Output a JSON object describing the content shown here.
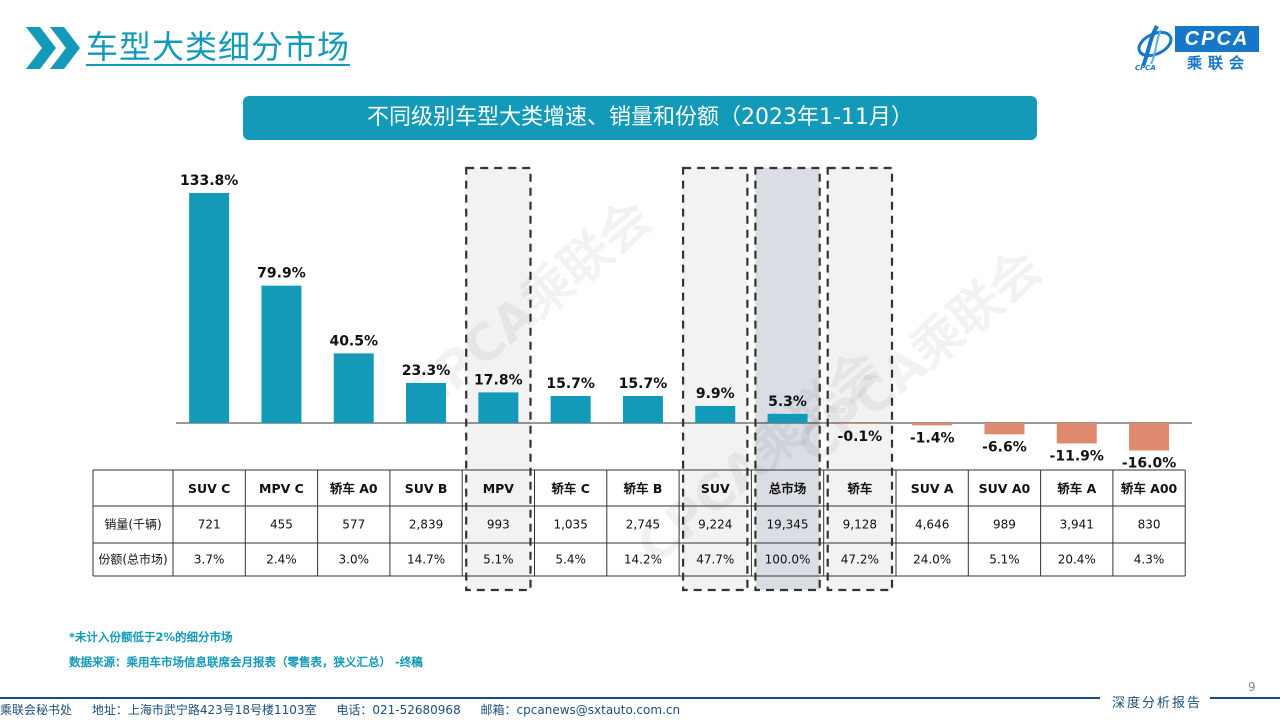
{
  "header": {
    "page_title": "车型大类细分市场",
    "logo_text": "CPCA",
    "logo_cn": "乘联会",
    "logo_sub": "CPCA"
  },
  "chart_title": "不同级别车型大类增速、销量和份额（2023年1-11月）",
  "watermarks": [
    "CPCA乘联会",
    "CPCA乘联会",
    "CPCA乘联会"
  ],
  "chart_data": {
    "type": "bar",
    "categories": [
      "SUV C",
      "MPV C",
      "轿车 A0",
      "SUV B",
      "MPV",
      "轿车 C",
      "轿车 B",
      "SUV",
      "总市场",
      "轿车",
      "SUV A",
      "SUV A0",
      "轿车 A",
      "轿车 A00"
    ],
    "values": [
      133.8,
      79.9,
      40.5,
      23.3,
      17.8,
      15.7,
      15.7,
      9.9,
      5.3,
      -0.1,
      -1.4,
      -6.6,
      -11.9,
      -16.0
    ],
    "data_labels": [
      "133.8%",
      "79.9%",
      "40.5%",
      "23.3%",
      "17.8%",
      "15.7%",
      "15.7%",
      "9.9%",
      "5.3%",
      "-0.1%",
      "-1.4%",
      "-6.6%",
      "-11.9%",
      "-16.0%"
    ],
    "colors": {
      "positive": "#139ab9",
      "negative": "#df8a6e"
    },
    "highlighted_categories": [
      "MPV",
      "SUV",
      "总市场",
      "轿车"
    ],
    "total_category": "总市场",
    "table": {
      "row_labels": [
        "销量(千辆)",
        "份额(总市场)"
      ],
      "rows": [
        [
          "721",
          "455",
          "577",
          "2,839",
          "993",
          "1,035",
          "2,745",
          "9,224",
          "19,345",
          "9,128",
          "4,646",
          "989",
          "3,941",
          "830"
        ],
        [
          "3.7%",
          "2.4%",
          "3.0%",
          "14.7%",
          "5.1%",
          "5.4%",
          "14.2%",
          "47.7%",
          "100.0%",
          "47.2%",
          "24.0%",
          "5.1%",
          "20.4%",
          "4.3%"
        ]
      ]
    }
  },
  "notes": {
    "note1": "*未计入份额低于2%的细分市场",
    "note2": "数据来源：乘用车市场信息联席会月报表（零售表，狭义汇总）   -终稿"
  },
  "page_number": "9",
  "report_tag": "深度分析报告",
  "footer": {
    "org": "乘联会秘书处",
    "address": "地址：上海市武宁路423号18号楼1103室",
    "phone": "电话：021-52680968",
    "email": "邮箱：cpcanews@sxtauto.com.cn"
  }
}
